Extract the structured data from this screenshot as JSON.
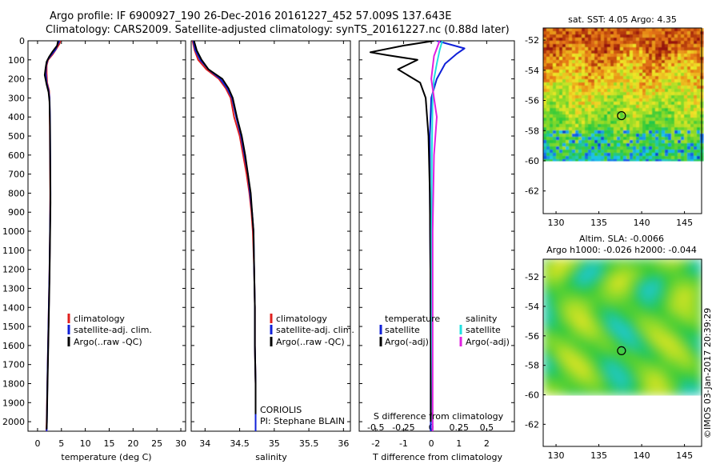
{
  "title_line1": "Argo profile: IF 6900927_190 26-Dec-2016 20161227_452 57.009S 137.643E",
  "title_line2": "Climatology: CARS2009. Satellite-adjusted climatology: synTS_20161227.nc (0.88d later)",
  "credit": "©IMOS 03-Jan-2017 20:39:29",
  "colors": {
    "climatology": "#e0201e",
    "satellite": "#1020d8",
    "argo": "#000000",
    "sal_satellite": "#20e0e0",
    "sal_argo": "#e020e0"
  },
  "chart_data": [
    {
      "id": "temperature",
      "type": "line",
      "xlabel": "temperature (deg C)",
      "xlim": [
        -2,
        31
      ],
      "xticks": [
        0,
        5,
        10,
        15,
        20,
        25,
        30
      ],
      "ylim": [
        0,
        2050
      ],
      "yticks": [
        0,
        100,
        200,
        300,
        400,
        500,
        600,
        700,
        800,
        900,
        1000,
        1100,
        1200,
        1300,
        1400,
        1500,
        1600,
        1700,
        1800,
        1900,
        2000
      ],
      "legend": {
        "placement": "middle-center",
        "entries": [
          "climatology",
          "satellite-adj. clim.",
          "Argo(..raw -QC)"
        ]
      },
      "series": [
        {
          "name": "climatology",
          "color": "climatology",
          "points": [
            [
              4.8,
              0
            ],
            [
              4.6,
              15
            ],
            [
              4.0,
              40
            ],
            [
              3.2,
              70
            ],
            [
              2.2,
              100
            ],
            [
              1.9,
              130
            ],
            [
              1.9,
              170
            ],
            [
              2.0,
              220
            ],
            [
              2.4,
              260
            ],
            [
              2.5,
              300
            ],
            [
              2.55,
              400
            ],
            [
              2.6,
              600
            ],
            [
              2.65,
              800
            ],
            [
              2.6,
              1000
            ],
            [
              2.5,
              1200
            ],
            [
              2.35,
              1400
            ],
            [
              2.2,
              1600
            ],
            [
              2.05,
              1800
            ],
            [
              1.9,
              2000
            ],
            [
              1.85,
              2050
            ]
          ]
        },
        {
          "name": "satellite-adj. clim.",
          "color": "satellite",
          "points": [
            [
              4.6,
              0
            ],
            [
              4.2,
              20
            ],
            [
              3.8,
              45
            ],
            [
              3.0,
              70
            ],
            [
              2.1,
              100
            ],
            [
              1.8,
              130
            ],
            [
              1.7,
              170
            ],
            [
              1.9,
              220
            ],
            [
              2.3,
              260
            ],
            [
              2.5,
              300
            ],
            [
              2.6,
              400
            ],
            [
              2.65,
              600
            ],
            [
              2.7,
              800
            ],
            [
              2.6,
              1000
            ],
            [
              2.5,
              1200
            ],
            [
              2.35,
              1400
            ],
            [
              2.2,
              1600
            ],
            [
              2.05,
              1800
            ],
            [
              1.95,
              2000
            ],
            [
              1.9,
              2050
            ]
          ]
        },
        {
          "name": "Argo(..raw -QC)",
          "color": "argo",
          "points": [
            [
              4.3,
              0
            ],
            [
              4.1,
              25
            ],
            [
              3.2,
              55
            ],
            [
              2.4,
              85
            ],
            [
              1.9,
              110
            ],
            [
              1.7,
              140
            ],
            [
              1.5,
              180
            ],
            [
              1.9,
              230
            ],
            [
              2.3,
              270
            ],
            [
              2.5,
              320
            ],
            [
              2.6,
              450
            ],
            [
              2.65,
              650
            ],
            [
              2.7,
              850
            ],
            [
              2.6,
              1050
            ],
            [
              2.5,
              1250
            ],
            [
              2.35,
              1450
            ],
            [
              2.2,
              1650
            ],
            [
              2.05,
              1850
            ],
            [
              1.95,
              2000
            ],
            [
              1.9,
              2040
            ]
          ]
        }
      ]
    },
    {
      "id": "salinity",
      "type": "line",
      "xlabel": "salinity",
      "xlim": [
        33.8,
        36.1
      ],
      "xticks": [
        34,
        34.5,
        35,
        35.5,
        36
      ],
      "ylim": [
        0,
        2050
      ],
      "legend": {
        "placement": "middle-center",
        "entries": [
          "climatology",
          "satellite-adj. clim.",
          "Argo(..raw -QC)"
        ]
      },
      "annotations": [
        "CORIOLIS",
        "PI: Stephane BLAIN"
      ],
      "series": [
        {
          "name": "climatology",
          "color": "climatology",
          "points": [
            [
              33.82,
              0
            ],
            [
              33.85,
              50
            ],
            [
              33.9,
              100
            ],
            [
              34.02,
              150
            ],
            [
              34.2,
              200
            ],
            [
              34.3,
              250
            ],
            [
              34.37,
              300
            ],
            [
              34.42,
              400
            ],
            [
              34.5,
              500
            ],
            [
              34.55,
              600
            ],
            [
              34.6,
              700
            ],
            [
              34.64,
              800
            ],
            [
              34.67,
              900
            ],
            [
              34.69,
              1000
            ],
            [
              34.71,
              1200
            ],
            [
              34.72,
              1400
            ],
            [
              34.72,
              1600
            ],
            [
              34.73,
              1800
            ],
            [
              34.73,
              2050
            ]
          ]
        },
        {
          "name": "satellite-adj. clim.",
          "color": "satellite",
          "points": [
            [
              33.83,
              0
            ],
            [
              33.86,
              50
            ],
            [
              33.93,
              100
            ],
            [
              34.05,
              150
            ],
            [
              34.22,
              200
            ],
            [
              34.32,
              250
            ],
            [
              34.39,
              300
            ],
            [
              34.45,
              400
            ],
            [
              34.52,
              500
            ],
            [
              34.57,
              600
            ],
            [
              34.62,
              700
            ],
            [
              34.65,
              800
            ],
            [
              34.68,
              900
            ],
            [
              34.7,
              1000
            ],
            [
              34.71,
              1200
            ],
            [
              34.72,
              1400
            ],
            [
              34.72,
              1600
            ],
            [
              34.73,
              1800
            ],
            [
              34.73,
              2050
            ]
          ]
        },
        {
          "name": "Argo(..raw -QC)",
          "color": "argo",
          "points": [
            [
              33.84,
              0
            ],
            [
              33.88,
              50
            ],
            [
              33.95,
              100
            ],
            [
              34.05,
              150
            ],
            [
              34.25,
              200
            ],
            [
              34.34,
              250
            ],
            [
              34.4,
              300
            ],
            [
              34.46,
              400
            ],
            [
              34.53,
              500
            ],
            [
              34.58,
              600
            ],
            [
              34.62,
              700
            ],
            [
              34.66,
              800
            ],
            [
              34.68,
              900
            ],
            [
              34.7,
              1000
            ],
            [
              34.71,
              1200
            ],
            [
              34.72,
              1400
            ],
            [
              34.72,
              1600
            ],
            [
              34.73,
              1800
            ],
            [
              34.73,
              1960
            ]
          ]
        }
      ]
    },
    {
      "id": "difference",
      "type": "line",
      "xlabel": "T difference from climatology",
      "xlim": [
        -2.6,
        3
      ],
      "xticks": [
        -2,
        -1,
        0,
        1,
        2
      ],
      "s_label": "S difference from climatology",
      "s_ticks": [
        "-0.5",
        "-0.25",
        "0",
        "0.25",
        "0.5"
      ],
      "s_tick_values": [
        -2,
        -1,
        0,
        1,
        2
      ],
      "ylim": [
        0,
        2050
      ],
      "legend": {
        "placement": "bottom-center",
        "temperature_header": "temperature",
        "salinity_header": "salinity",
        "entries": [
          "satellite",
          "Argo(-adj)",
          "satellite",
          "Argo(-adj)"
        ]
      },
      "series": [
        {
          "name": "temperature satellite",
          "color": "satellite",
          "points": [
            [
              0.2,
              0
            ],
            [
              1.2,
              40
            ],
            [
              0.9,
              70
            ],
            [
              0.5,
              120
            ],
            [
              0.2,
              200
            ],
            [
              0,
              300
            ],
            [
              -0.05,
              500
            ],
            [
              -0.05,
              800
            ],
            [
              -0.03,
              1200
            ],
            [
              -0.02,
              1600
            ],
            [
              -0.02,
              2050
            ]
          ]
        },
        {
          "name": "temperature Argo(-adj)",
          "color": "argo",
          "points": [
            [
              0.1,
              0
            ],
            [
              -1.0,
              25
            ],
            [
              -2.2,
              60
            ],
            [
              -1.6,
              75
            ],
            [
              -0.5,
              100
            ],
            [
              -1.2,
              150
            ],
            [
              -0.4,
              220
            ],
            [
              -0.2,
              300
            ],
            [
              -0.1,
              500
            ],
            [
              -0.05,
              800
            ],
            [
              -0.03,
              1200
            ],
            [
              -0.02,
              1600
            ],
            [
              -0.02,
              2000
            ]
          ]
        },
        {
          "name": "salinity satellite",
          "color": "sal_satellite",
          "points": [
            [
              0.4,
              0
            ],
            [
              0.3,
              50
            ],
            [
              0.2,
              120
            ],
            [
              0.1,
              200
            ],
            [
              0.05,
              300
            ],
            [
              0.02,
              600
            ],
            [
              0.01,
              1000
            ],
            [
              0.02,
              1500
            ],
            [
              0.05,
              2050
            ]
          ]
        },
        {
          "name": "salinity Argo(-adj)",
          "color": "sal_argo",
          "points": [
            [
              0.3,
              0
            ],
            [
              0.1,
              80
            ],
            [
              0.0,
              200
            ],
            [
              0.1,
              300
            ],
            [
              0.2,
              400
            ],
            [
              0.1,
              600
            ],
            [
              0.05,
              1000
            ],
            [
              0.05,
              1500
            ],
            [
              0.05,
              2050
            ]
          ]
        }
      ]
    },
    {
      "id": "sst_map",
      "type": "heatmap",
      "title": "sat. SST: 4.05  Argo: 4.35",
      "xticks": [
        130,
        135,
        140,
        145
      ],
      "yticks": [
        -52,
        -54,
        -56,
        -58,
        -60,
        -62
      ],
      "xlim": [
        128.5,
        147
      ],
      "ylim": [
        -63.5,
        -51.2
      ],
      "data_lat_min": -60,
      "marker": {
        "lon": 137.643,
        "lat": -57.009
      }
    },
    {
      "id": "sla_map",
      "type": "heatmap",
      "title": "Altim. SLA: -0.0066",
      "subtitle": "Argo h1000: -0.026 h2000: -0.044",
      "xticks": [
        130,
        135,
        140,
        145
      ],
      "yticks": [
        -52,
        -54,
        -56,
        -58,
        -60,
        -62
      ],
      "xlim": [
        128.5,
        147
      ],
      "ylim": [
        -63.5,
        -50.8
      ],
      "data_lat_min": -60,
      "marker": {
        "lon": 137.643,
        "lat": -57.009
      }
    }
  ]
}
